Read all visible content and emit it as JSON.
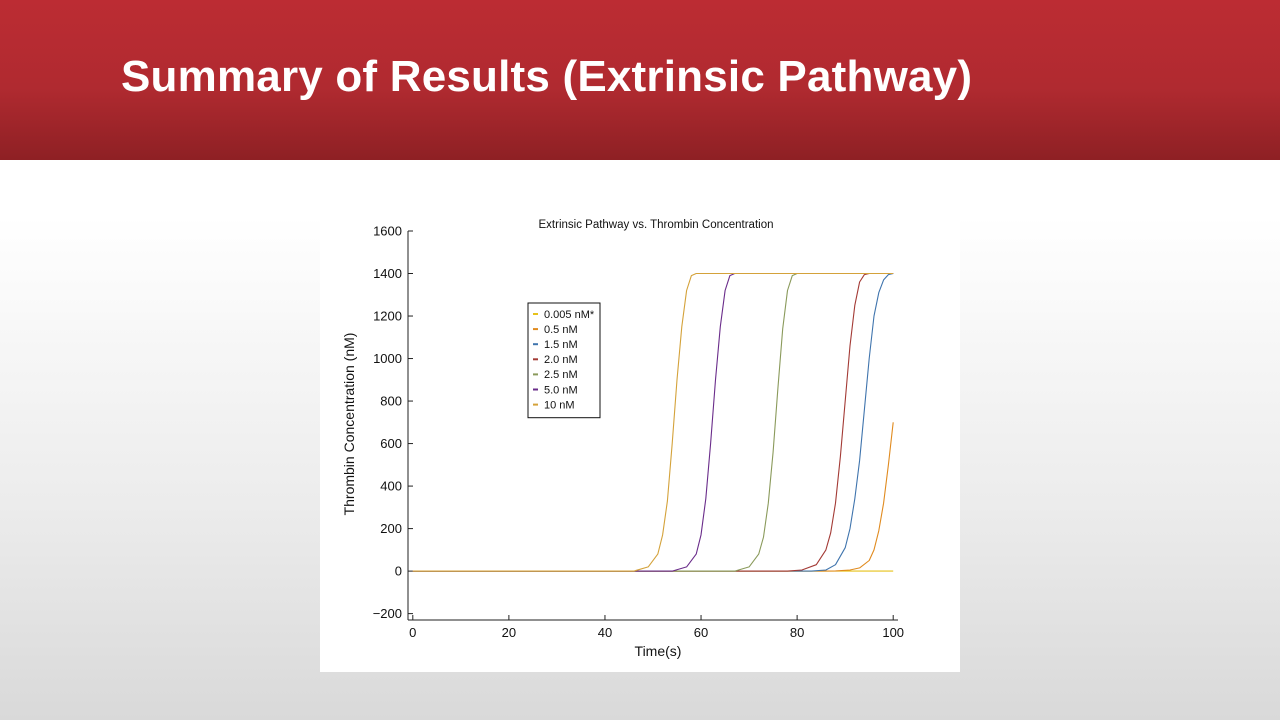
{
  "slide": {
    "title": "Summary of Results (Extrinsic Pathway)"
  },
  "colors": {
    "header_red": "#b52b31",
    "title_text": "#ffffff"
  },
  "chart_data": {
    "type": "line",
    "title": "Extrinsic Pathway vs. Thrombin Concentration",
    "xlabel": "Time(s)",
    "ylabel": "Thrombin Concentration (nM)",
    "xlim": [
      -1,
      101
    ],
    "ylim": [
      -230,
      1600
    ],
    "xticks": [
      0,
      20,
      40,
      60,
      80,
      100
    ],
    "yticks": [
      -200,
      0,
      200,
      400,
      600,
      800,
      1000,
      1200,
      1400,
      1600
    ],
    "xtick_labels": [
      "0",
      "20",
      "40",
      "60",
      "80",
      "100"
    ],
    "ytick_labels": [
      "−200",
      "0",
      "200",
      "400",
      "600",
      "800",
      "1000",
      "1200",
      "1400",
      "1600"
    ],
    "grid": false,
    "legend_position": "upper-left",
    "series": [
      {
        "name": "0.005 nM*",
        "color": "#e6c21a",
        "x": [
          0,
          20,
          40,
          60,
          80,
          100
        ],
        "y": [
          0,
          0,
          0,
          0,
          0,
          0
        ]
      },
      {
        "name": "0.5 nM",
        "color": "#e08a1e",
        "x": [
          0,
          85,
          88,
          91,
          93,
          95,
          96,
          97,
          98,
          99,
          100
        ],
        "y": [
          0,
          0,
          1,
          5,
          15,
          50,
          100,
          190,
          320,
          500,
          700
        ]
      },
      {
        "name": "1.5 nM",
        "color": "#3f74ad",
        "x": [
          0,
          83,
          86,
          88,
          90,
          91,
          92,
          93,
          94,
          95,
          96,
          97,
          98,
          99,
          100
        ],
        "y": [
          0,
          0,
          5,
          30,
          110,
          200,
          340,
          520,
          760,
          1000,
          1200,
          1310,
          1370,
          1395,
          1400
        ]
      },
      {
        "name": "2.0 nM",
        "color": "#a33a35",
        "x": [
          0,
          78,
          81,
          84,
          86,
          87,
          88,
          89,
          90,
          91,
          92,
          93,
          94,
          95
        ],
        "y": [
          0,
          0,
          5,
          30,
          100,
          180,
          320,
          540,
          800,
          1060,
          1250,
          1360,
          1395,
          1400
        ]
      },
      {
        "name": "2.5 nM",
        "color": "#8a9a5b",
        "x": [
          0,
          67,
          70,
          72,
          73,
          74,
          75,
          76,
          77,
          78,
          79,
          80,
          100
        ],
        "y": [
          0,
          0,
          20,
          80,
          160,
          320,
          560,
          860,
          1140,
          1320,
          1390,
          1400,
          1400
        ]
      },
      {
        "name": "5.0 nM",
        "color": "#6a2c8a",
        "x": [
          0,
          54,
          57,
          59,
          60,
          61,
          62,
          63,
          64,
          65,
          66,
          67,
          80,
          100
        ],
        "y": [
          0,
          0,
          20,
          80,
          170,
          340,
          600,
          900,
          1150,
          1320,
          1390,
          1400,
          1400,
          1400
        ]
      },
      {
        "name": "10 nM",
        "color": "#d4a23a",
        "x": [
          0,
          46,
          49,
          51,
          52,
          53,
          54,
          55,
          56,
          57,
          58,
          59,
          80,
          100
        ],
        "y": [
          0,
          0,
          20,
          80,
          170,
          330,
          600,
          900,
          1150,
          1320,
          1390,
          1400,
          1400,
          1400
        ]
      }
    ]
  }
}
